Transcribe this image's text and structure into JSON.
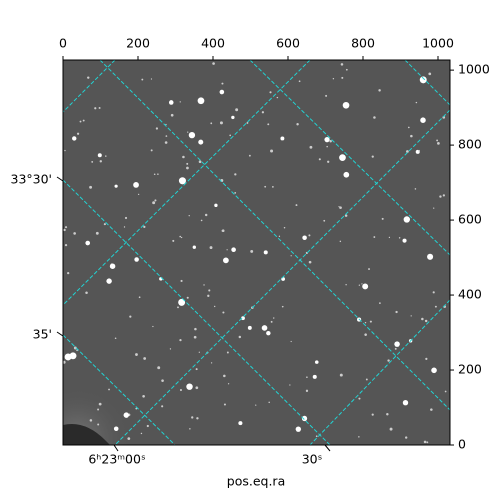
{
  "chart_data": {
    "type": "image",
    "xlabel": "pos.eq.ra",
    "xlim": [
      0,
      1032
    ],
    "xticks": [
      0,
      200,
      400,
      600,
      800,
      1000
    ],
    "ylim": [
      0,
      1027
    ],
    "yticks": [
      0,
      200,
      400,
      600,
      800,
      1000
    ],
    "ra_labels": [
      "6ʰ23ᵐ00ˢ",
      "30ˢ"
    ],
    "dec_labels": [
      "33°30'",
      "35'"
    ],
    "grid_color": "#22d3d3"
  }
}
